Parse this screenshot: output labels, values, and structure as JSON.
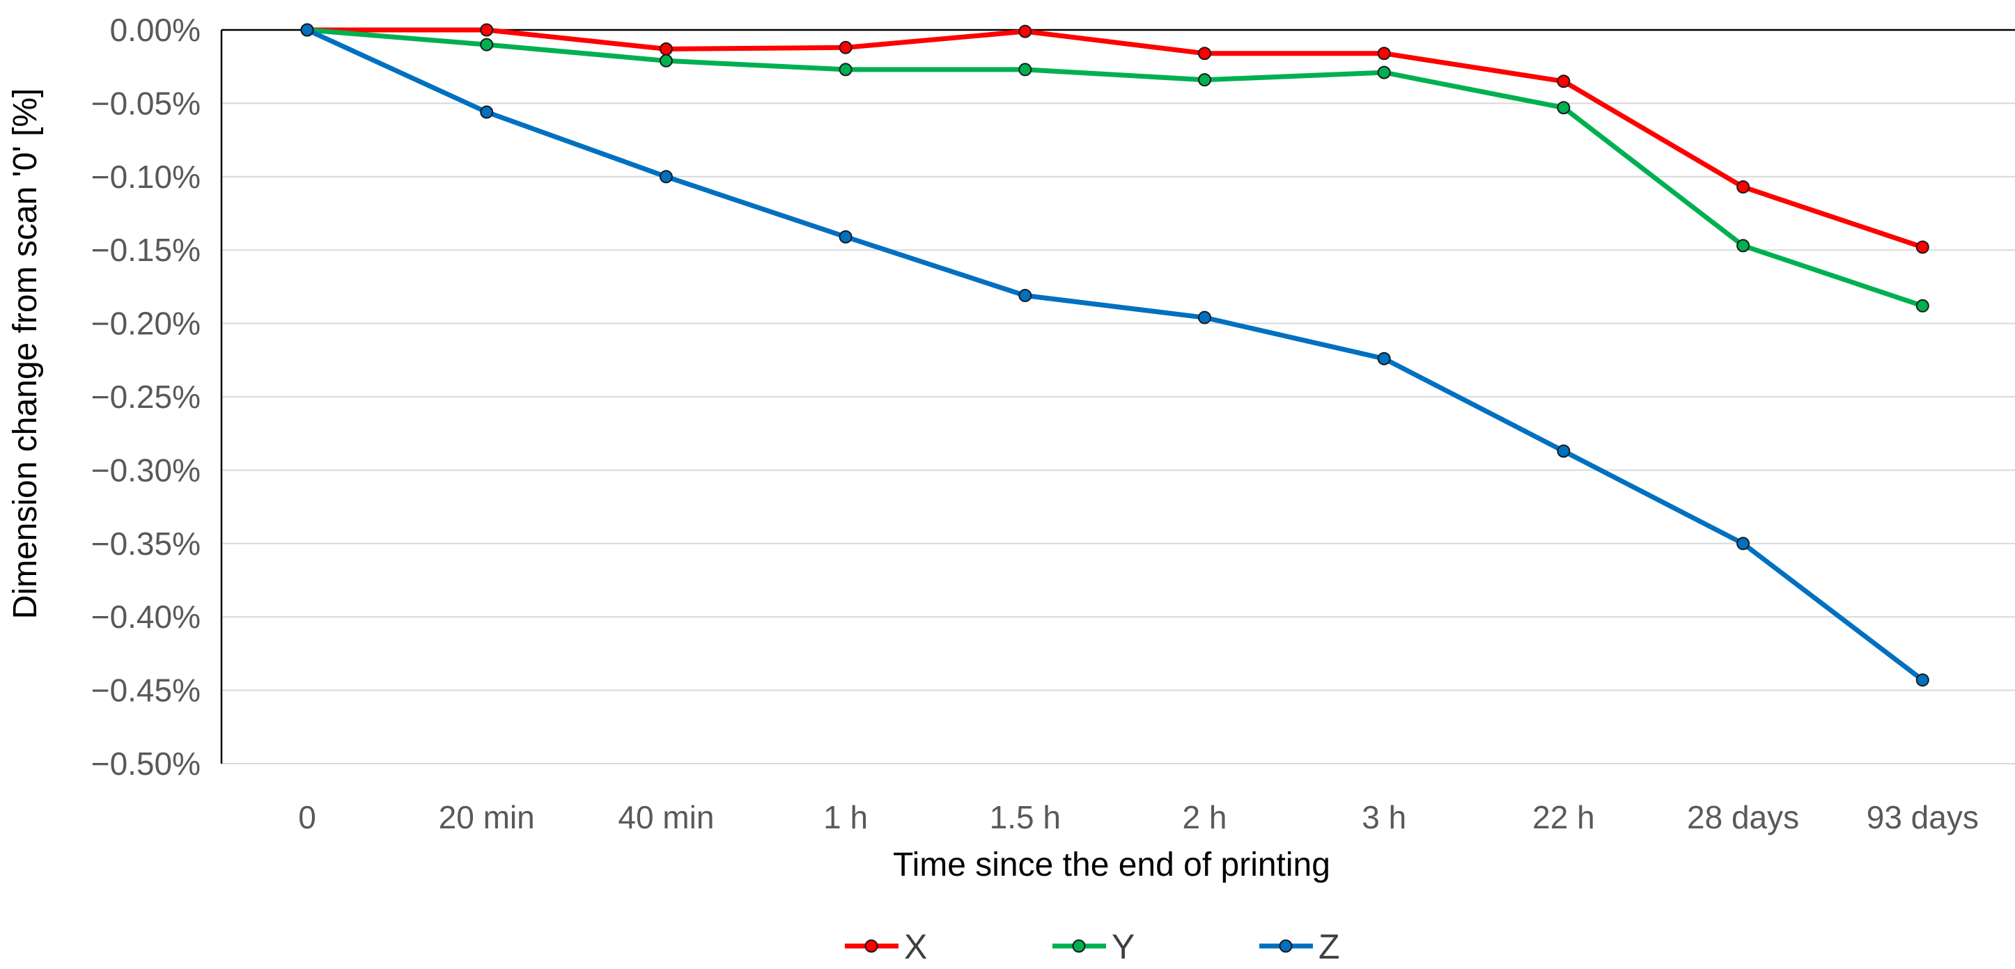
{
  "chart_data": {
    "type": "line",
    "title": "",
    "xlabel": "Time since the end of printing",
    "ylabel": "Dimension change from scan '0' [%]",
    "categories": [
      "0",
      "20 min",
      "40 min",
      "1 h",
      "1.5 h",
      "2 h",
      "3 h",
      "22 h",
      "28 days",
      "93 days"
    ],
    "ylim": [
      -0.5,
      0.0
    ],
    "yticks": [
      0.0,
      -0.05,
      -0.1,
      -0.15,
      -0.2,
      -0.25,
      -0.3,
      -0.35,
      -0.4,
      -0.45,
      -0.5
    ],
    "ytick_labels": [
      "0.00%",
      "−0.05%",
      "−0.10%",
      "−0.15%",
      "−0.20%",
      "−0.25%",
      "−0.30%",
      "−0.35%",
      "−0.40%",
      "−0.45%",
      "−0.50%"
    ],
    "grid": "horizontal",
    "legend_position": "bottom",
    "series": [
      {
        "name": "X",
        "color": "#FF0000",
        "values": [
          0.0,
          0.0,
          -0.013,
          -0.012,
          -0.001,
          -0.016,
          -0.016,
          -0.035,
          -0.107,
          -0.148
        ]
      },
      {
        "name": "Y",
        "color": "#00B050",
        "values": [
          0.0,
          -0.01,
          -0.021,
          -0.027,
          -0.027,
          -0.034,
          -0.029,
          -0.053,
          -0.147,
          -0.188
        ]
      },
      {
        "name": "Z",
        "color": "#0070C0",
        "values": [
          0.0,
          -0.056,
          -0.1,
          -0.141,
          -0.181,
          -0.196,
          -0.224,
          -0.287,
          -0.35,
          -0.443
        ]
      }
    ]
  }
}
